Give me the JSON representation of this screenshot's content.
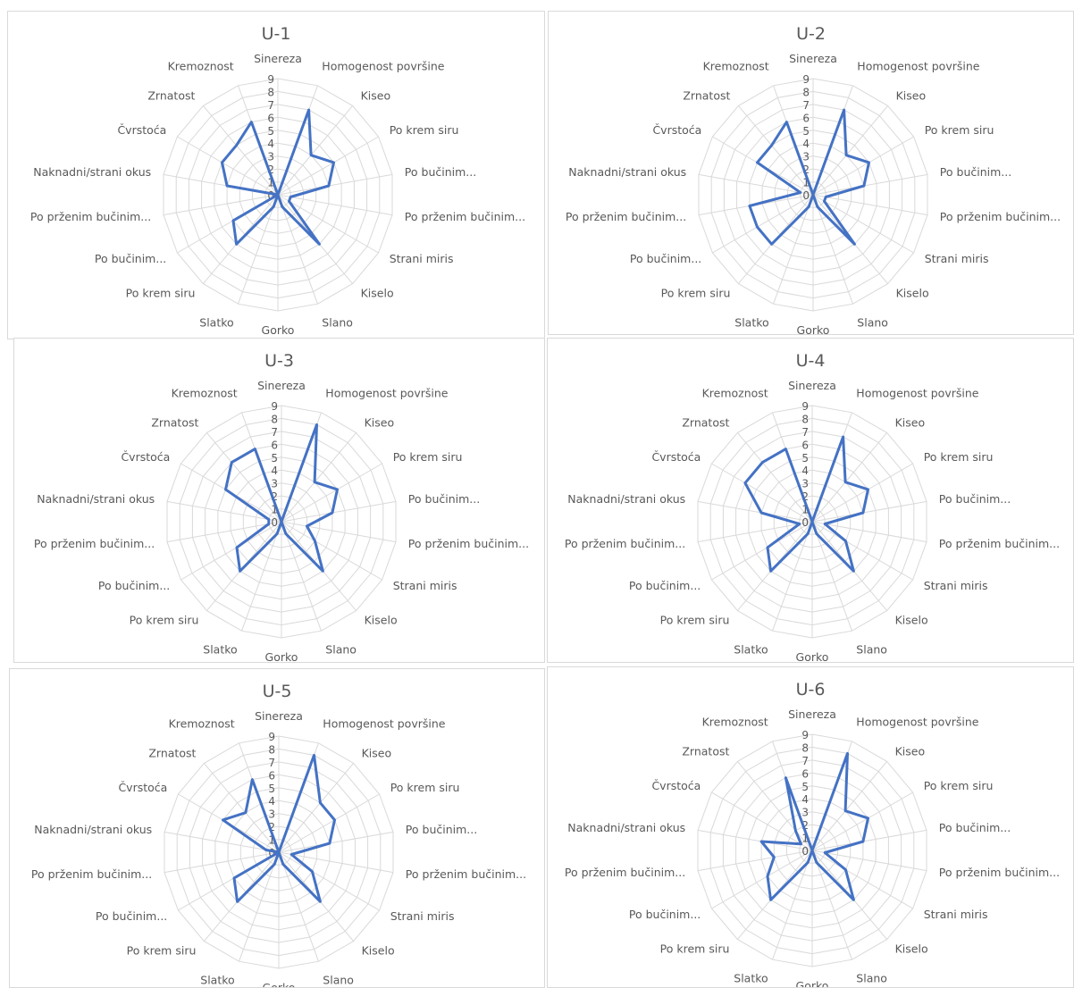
{
  "chart_data": [
    {
      "type": "radar",
      "title": "U-1",
      "categories": [
        "Sinereza",
        "Homogenost površine",
        "Kiseo",
        "Po krem siru",
        "Po bučinim...",
        "Po prženim bučinim...",
        "Strani miris",
        "Kiselo",
        "Slano",
        "Gorko",
        "Slatko",
        "Po krem siru",
        "Po bučinim...",
        "Po prženim bučinim...",
        "Naknadni/strani okus",
        "Čvrstoća",
        "Zrnatost",
        "Kremoznost"
      ],
      "tick_labels": [
        "0",
        "1",
        "2",
        "3",
        "4",
        "5",
        "6",
        "7",
        "8",
        "9"
      ],
      "rlim": [
        0,
        9
      ],
      "grid": true,
      "series": [
        {
          "color": "#4472c4",
          "values": [
            0,
            7,
            4,
            5,
            4,
            1,
            1,
            5,
            1,
            0,
            1,
            5,
            4,
            0,
            4,
            5,
            5,
            6
          ]
        }
      ]
    },
    {
      "type": "radar",
      "title": "U-2",
      "categories": [
        "Sinereza",
        "Homogenost površine",
        "Kiseo",
        "Po krem siru",
        "Po bučinim...",
        "Po prženim bučinim...",
        "Strani miris",
        "Kiselo",
        "Slano",
        "Gorko",
        "Slatko",
        "Po krem siru",
        "Po bučinim...",
        "Po prženim bučinim...",
        "Naknadni/strani okus",
        "Čvrstoća",
        "Zrnatost",
        "Kremoznost"
      ],
      "tick_labels": [
        "0",
        "1",
        "2",
        "3",
        "4",
        "5",
        "6",
        "7",
        "8",
        "9"
      ],
      "rlim": [
        0,
        9
      ],
      "grid": true,
      "series": [
        {
          "color": "#4472c4",
          "values": [
            0,
            7,
            4,
            5,
            4,
            1,
            1,
            5,
            1,
            0,
            1,
            5,
            5,
            5,
            1,
            5,
            5,
            6
          ]
        }
      ]
    },
    {
      "type": "radar",
      "title": "U-3",
      "categories": [
        "Sinereza",
        "Homogenost površine",
        "Kiseo",
        "Po krem siru",
        "Po bučinim...",
        "Po prženim bučinim...",
        "Strani miris",
        "Kiselo",
        "Slano",
        "Gorko",
        "Slatko",
        "Po krem siru",
        "Po bučinim...",
        "Po prženim bučinim...",
        "Naknadni/strani okus",
        "Čvrstoća",
        "Zrnatost",
        "Kremoznost"
      ],
      "tick_labels": [
        "0",
        "1",
        "2",
        "3",
        "4",
        "5",
        "6",
        "7",
        "8",
        "9"
      ],
      "rlim": [
        0,
        9
      ],
      "grid": true,
      "series": [
        {
          "color": "#4472c4",
          "values": [
            0,
            8,
            4,
            5,
            4,
            2,
            3,
            5,
            1,
            0,
            1,
            5,
            4,
            1,
            1,
            5,
            6,
            6
          ]
        }
      ]
    },
    {
      "type": "radar",
      "title": "U-4",
      "categories": [
        "Sinereza",
        "Homogenost površine",
        "Kiseo",
        "Po krem siru",
        "Po bučinim...",
        "Po prženim bučinim...",
        "Strani miris",
        "Kiselo",
        "Slano",
        "Gorko",
        "Slatko",
        "Po krem siru",
        "Po bučinim...",
        "Po prženim bučinim...",
        "Naknadni/strani okus",
        "Čvrstoća",
        "Zrnatost",
        "Kremoznost"
      ],
      "tick_labels": [
        "0",
        "1",
        "2",
        "3",
        "4",
        "5",
        "6",
        "7",
        "8",
        "9"
      ],
      "rlim": [
        0,
        9
      ],
      "grid": true,
      "series": [
        {
          "color": "#4472c4",
          "values": [
            0,
            7,
            4,
            5,
            4,
            1,
            3,
            5,
            1,
            0,
            1,
            5,
            4,
            1,
            4,
            6,
            6,
            6
          ]
        }
      ]
    },
    {
      "type": "radar",
      "title": "U-5",
      "categories": [
        "Sinereza",
        "Homogenost površine",
        "Kiseo",
        "Po krem siru",
        "Po bučinim...",
        "Po prženim bučinim...",
        "Strani miris",
        "Kiselo",
        "Slano",
        "Gorko",
        "Slatko",
        "Po krem siru",
        "Po bučinim...",
        "Po prženim bučinim...",
        "Naknadni/strani okus",
        "Čvrstoća",
        "Zrnatost",
        "Kremoznost"
      ],
      "tick_labels": [
        "0",
        "1",
        "2",
        "3",
        "4",
        "5",
        "6",
        "7",
        "8",
        "9"
      ],
      "rlim": [
        0,
        9
      ],
      "grid": true,
      "series": [
        {
          "color": "#4472c4",
          "values": [
            0,
            8,
            5,
            5,
            4,
            1,
            3,
            5,
            1,
            0,
            1,
            5,
            4,
            0,
            1,
            5,
            4,
            6
          ]
        }
      ]
    },
    {
      "type": "radar",
      "title": "U-6",
      "categories": [
        "Sinereza",
        "Homogenost površine",
        "Kiseo",
        "Po krem siru",
        "Po bučinim...",
        "Po prženim bučinim...",
        "Strani miris",
        "Kiselo",
        "Slano",
        "Gorko",
        "Slatko",
        "Po krem siru",
        "Po bučinim...",
        "Po prženim bučinim...",
        "Naknadni/strani okus",
        "Čvrstoća",
        "Zrnatost",
        "Kremoznost"
      ],
      "tick_labels": [
        "0",
        "1",
        "2",
        "3",
        "4",
        "5",
        "6",
        "7",
        "8",
        "9"
      ],
      "rlim": [
        0,
        9
      ],
      "grid": true,
      "series": [
        {
          "color": "#4472c4",
          "values": [
            0,
            8,
            4,
            5,
            4,
            1,
            3,
            5,
            1,
            0,
            1,
            5,
            4,
            3,
            4,
            1,
            2,
            6
          ]
        }
      ]
    }
  ]
}
